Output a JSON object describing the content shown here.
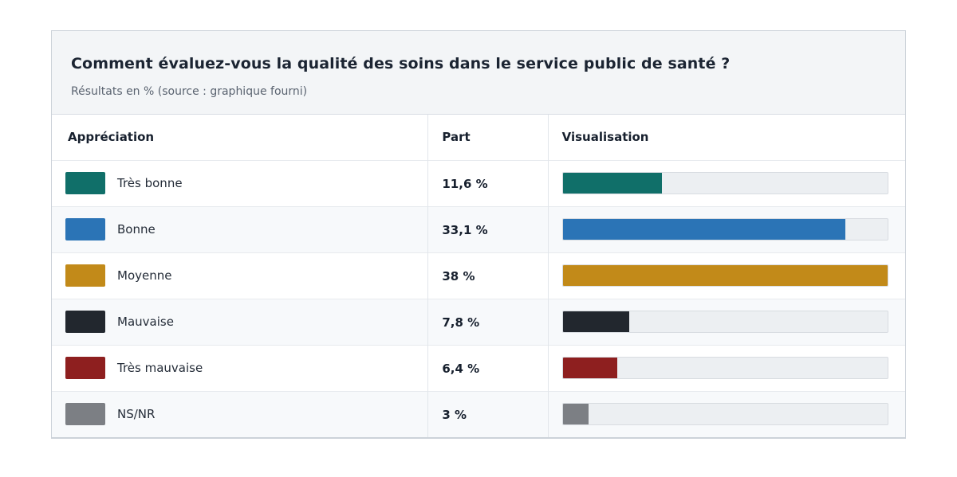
{
  "header": {
    "title": "Comment évaluez-vous la qualité des soins dans le service public de santé ?",
    "subtitle": "Résultats en % (source : graphique fourni)"
  },
  "table": {
    "columns": [
      "Appréciation",
      "Part",
      "Visualisation"
    ],
    "bar_scale_max": 38,
    "rows": [
      {
        "label": "Très bonne",
        "part": "11,6 %",
        "value": 11.6,
        "color": "#106f69"
      },
      {
        "label": "Bonne",
        "part": "33,1 %",
        "value": 33.1,
        "color": "#2b74b6"
      },
      {
        "label": "Moyenne",
        "part": "38 %",
        "value": 38,
        "color": "#c28a19"
      },
      {
        "label": "Mauvaise",
        "part": "7,8 %",
        "value": 7.8,
        "color": "#22272e"
      },
      {
        "label": "Très mauvaise",
        "part": "6,4 %",
        "value": 6.4,
        "color": "#8e1f1f"
      },
      {
        "label": "NS/NR",
        "part": "3 %",
        "value": 3,
        "color": "#7c7f84"
      }
    ]
  },
  "chart_data": {
    "type": "bar",
    "orientation": "horizontal",
    "title": "Comment évaluez-vous la qualité des soins dans le service public de santé ?",
    "subtitle": "Résultats en % (source : graphique fourni)",
    "categories": [
      "Très bonne",
      "Bonne",
      "Moyenne",
      "Mauvaise",
      "Très mauvaise",
      "NS/NR"
    ],
    "values": [
      11.6,
      33.1,
      38,
      7.8,
      6.4,
      3
    ],
    "value_labels": [
      "11,6 %",
      "33,1 %",
      "38 %",
      "7,8 %",
      "6,4 %",
      "3 %"
    ],
    "colors": [
      "#106f69",
      "#2b74b6",
      "#c28a19",
      "#22272e",
      "#8e1f1f",
      "#7c7f84"
    ],
    "xlim": [
      0,
      38
    ],
    "legend": false,
    "grid": false
  },
  "colors": {
    "card_header_bg": "#f3f5f7",
    "zebra_row_bg": "#f7f9fb",
    "bar_track": "#eceff2",
    "border": "#ccd2d9",
    "text_dark": "#1b2432",
    "text_muted": "#5a6370"
  }
}
